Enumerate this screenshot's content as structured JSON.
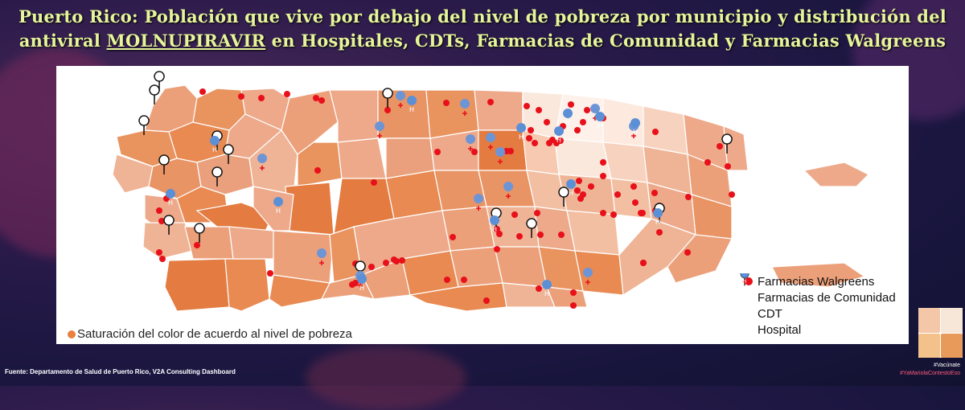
{
  "title": {
    "line1": "Puerto Rico: Población que vive por debajo del nivel de pobreza por municipio y  distribución del",
    "line2_pre": "antiviral ",
    "line2_highlight": "MOLNUPIRAVIR",
    "line2_post": " en Hospitales, CDTs, Farmacias de Comunidad y Farmacias Walgreens"
  },
  "scale_note": "Saturación del color de acuerdo al nivel de pobreza",
  "legend": [
    {
      "icon": "red-dot-icon",
      "label": "Farmacias Walgreens"
    },
    {
      "icon": "black-pin-icon",
      "label": "Farmacias de Comunidad"
    },
    {
      "icon": "blue-cross-pin-icon",
      "label": "CDT"
    },
    {
      "icon": "blue-h-pin-icon",
      "label": "Hospital"
    }
  ],
  "source": "Fuente: Departamento de Salud de Puerto Rico, V2A Consulting Dashboard",
  "tags": {
    "vacunate": "#Vacúnate",
    "hashtag": "#YaMariolaContestoEso"
  },
  "colors": {
    "title": "#e6f59a",
    "walgreens": "#e8101a",
    "cdt": "#6d95d6",
    "hospital": "#5b8fd6",
    "poverty_low": "#fbe8dc",
    "poverty_high": "#e8743c"
  }
}
